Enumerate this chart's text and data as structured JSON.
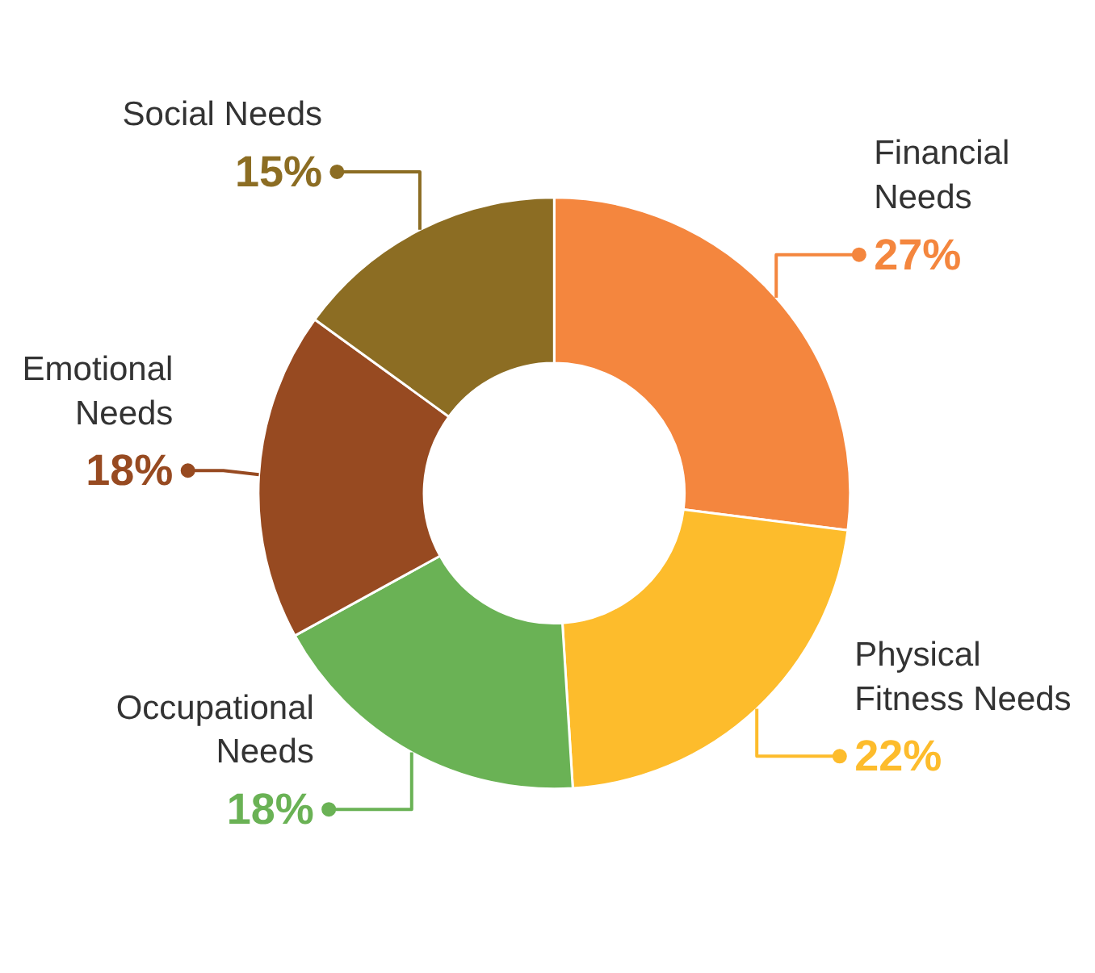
{
  "chart_data": {
    "type": "donut",
    "categories": [
      "Financial\nNeeds",
      "Physical\nFitness Needs",
      "Occupational\nNeeds",
      "Emotional\nNeeds",
      "Social Needs"
    ],
    "values": [
      27,
      22,
      18,
      18,
      15
    ],
    "colors": [
      "#f4863e",
      "#fdbc2c",
      "#6ab255",
      "#974a21",
      "#8c6d23"
    ],
    "value_labels": [
      "27%",
      "22%",
      "18%",
      "18%",
      "15%"
    ]
  }
}
